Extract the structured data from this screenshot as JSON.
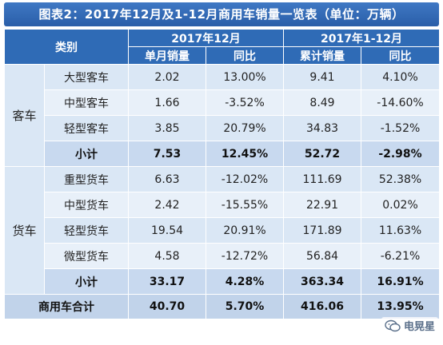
{
  "title": "图表2：2017年12月及1-12月商用车销量一览表（单位：万辆）",
  "headers": {
    "category": "类别",
    "period_month": "2017年12月",
    "period_ytd": "2017年1-12月",
    "monthly_sales": "单月销量",
    "yoy_month": "同比",
    "cum_sales": "累计销量",
    "yoy_ytd": "同比"
  },
  "groups": [
    {
      "name": "客车",
      "rows": [
        {
          "type": "大型客车",
          "month": "2.02",
          "month_yoy": "13.00%",
          "ytd": "9.41",
          "ytd_yoy": "4.10%"
        },
        {
          "type": "中型客车",
          "month": "1.66",
          "month_yoy": "-3.52%",
          "ytd": "8.49",
          "ytd_yoy": "-14.60%"
        },
        {
          "type": "轻型客车",
          "month": "3.85",
          "month_yoy": "20.79%",
          "ytd": "34.83",
          "ytd_yoy": "-1.52%"
        }
      ],
      "subtotal": {
        "label": "小计",
        "month": "7.53",
        "month_yoy": "12.45%",
        "ytd": "52.72",
        "ytd_yoy": "-2.98%"
      }
    },
    {
      "name": "货车",
      "rows": [
        {
          "type": "重型货车",
          "month": "6.63",
          "month_yoy": "-12.02%",
          "ytd": "111.69",
          "ytd_yoy": "52.38%"
        },
        {
          "type": "中型货车",
          "month": "2.42",
          "month_yoy": "-15.55%",
          "ytd": "22.91",
          "ytd_yoy": "0.02%"
        },
        {
          "type": "轻型货车",
          "month": "19.54",
          "month_yoy": "20.91%",
          "ytd": "171.89",
          "ytd_yoy": "11.63%"
        },
        {
          "type": "微型货车",
          "month": "4.58",
          "month_yoy": "-12.72%",
          "ytd": "56.84",
          "ytd_yoy": "-6.21%"
        }
      ],
      "subtotal": {
        "label": "小计",
        "month": "33.17",
        "month_yoy": "4.28%",
        "ytd": "363.34",
        "ytd_yoy": "16.91%"
      }
    }
  ],
  "total": {
    "label": "商用车合计",
    "month": "40.70",
    "month_yoy": "5.70%",
    "ytd": "416.06",
    "ytd_yoy": "13.95%"
  },
  "watermark": {
    "brand": "电晃星",
    "icon": "wechat-icon"
  },
  "colors": {
    "header": "#2f6bb6",
    "negative": "#d0101c",
    "row": "#dae7f5"
  }
}
